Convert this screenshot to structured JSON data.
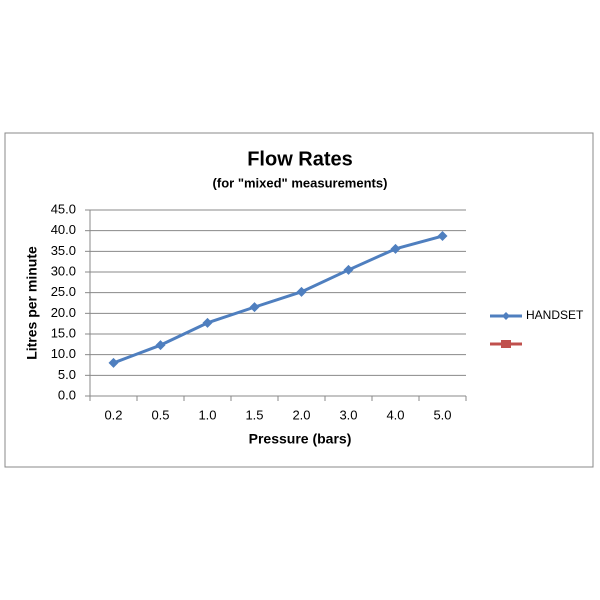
{
  "chart_data": {
    "type": "line",
    "title": "Flow Rates",
    "subtitle": "(for \"mixed\"  measurements)",
    "x_label": "Pressure (bars)",
    "y_label": "Litres per minute",
    "categories": [
      "0.2",
      "0.5",
      "1.0",
      "1.5",
      "2.0",
      "3.0",
      "4.0",
      "5.0"
    ],
    "series": [
      {
        "name": "HANDSET",
        "color": "#4f7fbf",
        "values": [
          8.0,
          12.3,
          17.7,
          21.5,
          25.2,
          30.5,
          35.6,
          38.7
        ]
      },
      {
        "color": "#c0504d",
        "values": [
          null,
          null,
          null,
          null,
          null,
          null,
          null,
          null
        ]
      }
    ],
    "ylim": [
      0,
      45
    ],
    "yticks": [
      {
        "value": 0,
        "label": "0.0"
      },
      {
        "value": 5,
        "label": "5.0"
      },
      {
        "value": 10,
        "label": "10.0"
      },
      {
        "value": 15,
        "label": "15.0"
      },
      {
        "value": 20,
        "label": "20.0"
      },
      {
        "value": 25,
        "label": "25.0"
      },
      {
        "value": 30,
        "label": "30.0"
      },
      {
        "value": 35,
        "label": "35.0"
      },
      {
        "value": 40,
        "label": "40.0"
      },
      {
        "value": 45,
        "label": "45.0"
      }
    ],
    "grid": true,
    "legend": "right"
  }
}
